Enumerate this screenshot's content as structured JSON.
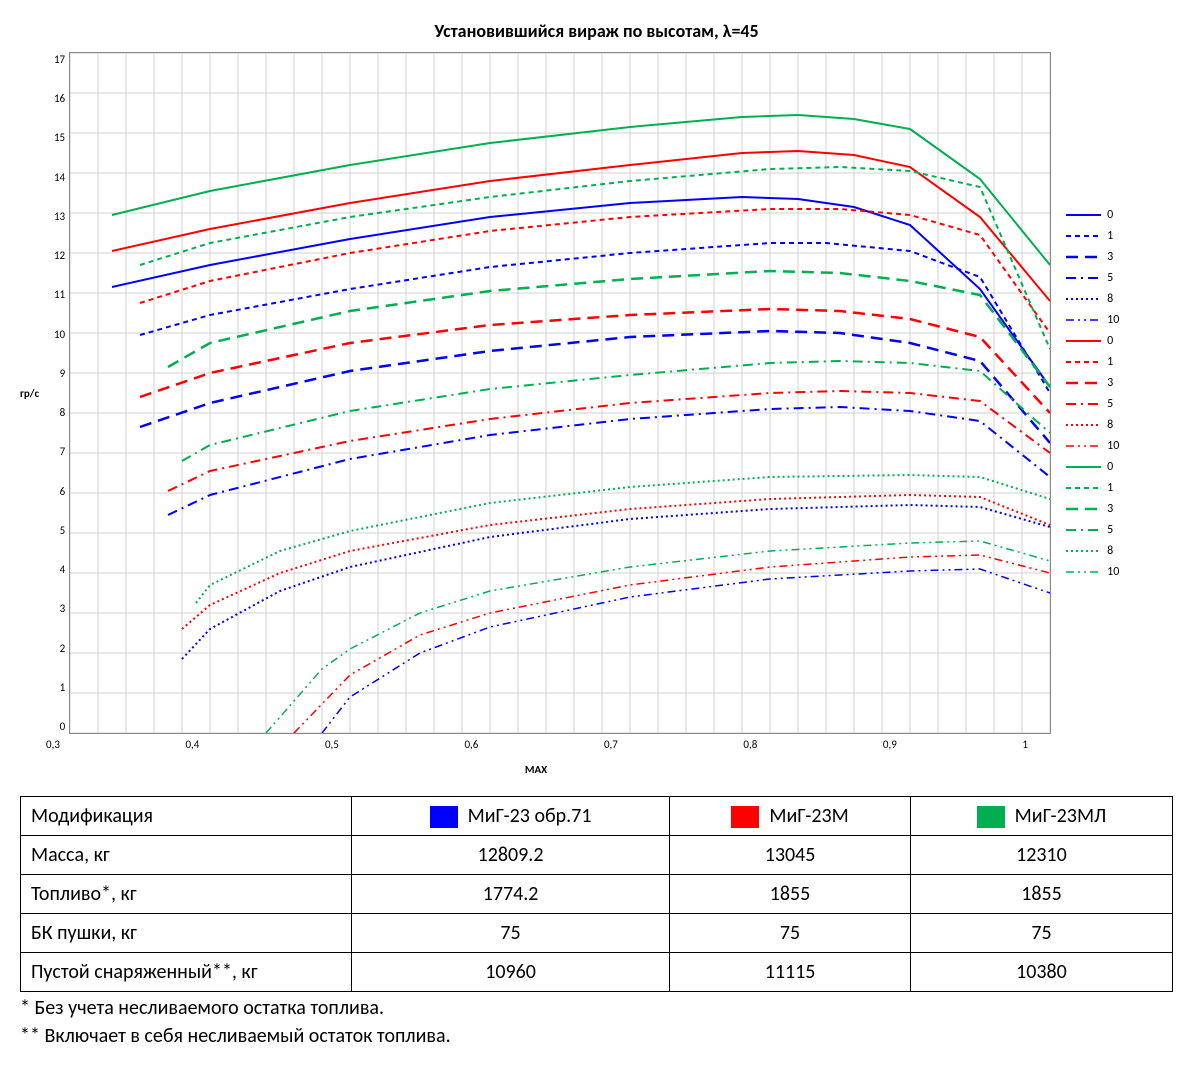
{
  "chart": {
    "title": "Установившийся вираж по высотам, λ=45",
    "xlabel": "МАХ",
    "ylabel": "гр/с",
    "xlim": [
      0.3,
      1.0
    ],
    "ylim": [
      0,
      17
    ],
    "xtick_step": 0.1,
    "xtick_minor": 0.02,
    "ytick_step": 1,
    "grid_color": "#d0d0d0",
    "background": "#ffffff",
    "colors": {
      "blue": "#0000ff",
      "red": "#ff0000",
      "green": "#00b050"
    },
    "series": [
      {
        "label": "0",
        "color": "#0000ff",
        "dash": "",
        "width": 2,
        "x": [
          0.33,
          0.4,
          0.5,
          0.6,
          0.7,
          0.78,
          0.82,
          0.86,
          0.9,
          0.95,
          1.0
        ],
        "y": [
          11.15,
          11.7,
          12.35,
          12.9,
          13.25,
          13.4,
          13.35,
          13.15,
          12.7,
          11.1,
          8.65
        ]
      },
      {
        "label": "1",
        "color": "#0000ff",
        "dash": "5,4",
        "width": 2,
        "x": [
          0.35,
          0.4,
          0.5,
          0.6,
          0.7,
          0.8,
          0.84,
          0.9,
          0.95,
          1.0
        ],
        "y": [
          9.95,
          10.45,
          11.1,
          11.65,
          12.0,
          12.25,
          12.25,
          12.05,
          11.4,
          8.5
        ]
      },
      {
        "label": "3",
        "color": "#0000ff",
        "dash": "12,7",
        "width": 2.5,
        "x": [
          0.35,
          0.4,
          0.5,
          0.6,
          0.7,
          0.8,
          0.85,
          0.9,
          0.95,
          1.0
        ],
        "y": [
          7.65,
          8.25,
          9.05,
          9.55,
          9.9,
          10.05,
          10.0,
          9.75,
          9.3,
          7.25
        ]
      },
      {
        "label": "5",
        "color": "#0000ff",
        "dash": "10,5,2,5",
        "width": 2,
        "x": [
          0.37,
          0.4,
          0.5,
          0.6,
          0.7,
          0.8,
          0.85,
          0.9,
          0.95,
          1.0
        ],
        "y": [
          5.45,
          5.95,
          6.85,
          7.45,
          7.85,
          8.1,
          8.15,
          8.05,
          7.8,
          6.4
        ]
      },
      {
        "label": "8",
        "color": "#0000ff",
        "dash": "2,3",
        "width": 2,
        "x": [
          0.38,
          0.4,
          0.45,
          0.5,
          0.6,
          0.7,
          0.8,
          0.9,
          0.95,
          1.0
        ],
        "y": [
          1.85,
          2.6,
          3.55,
          4.15,
          4.9,
          5.35,
          5.6,
          5.7,
          5.65,
          5.15
        ]
      },
      {
        "label": "10",
        "color": "#0000ff",
        "dash": "8,4,2,4,2,4",
        "width": 1.5,
        "x": [
          0.48,
          0.5,
          0.55,
          0.6,
          0.7,
          0.8,
          0.9,
          0.95,
          1.0
        ],
        "y": [
          0.0,
          0.9,
          2.0,
          2.65,
          3.4,
          3.85,
          4.05,
          4.1,
          3.5
        ]
      },
      {
        "label": "0",
        "color": "#ff0000",
        "dash": "",
        "width": 2,
        "x": [
          0.33,
          0.4,
          0.5,
          0.6,
          0.7,
          0.78,
          0.82,
          0.86,
          0.9,
          0.95,
          1.0
        ],
        "y": [
          12.05,
          12.6,
          13.25,
          13.8,
          14.2,
          14.5,
          14.55,
          14.45,
          14.15,
          12.9,
          10.8
        ]
      },
      {
        "label": "1",
        "color": "#ff0000",
        "dash": "5,4",
        "width": 2,
        "x": [
          0.35,
          0.4,
          0.5,
          0.6,
          0.7,
          0.8,
          0.85,
          0.9,
          0.95,
          1.0
        ],
        "y": [
          10.75,
          11.3,
          12.0,
          12.55,
          12.9,
          13.1,
          13.1,
          12.95,
          12.45,
          10.0
        ]
      },
      {
        "label": "3",
        "color": "#ff0000",
        "dash": "12,7",
        "width": 2.5,
        "x": [
          0.35,
          0.4,
          0.5,
          0.6,
          0.7,
          0.8,
          0.85,
          0.9,
          0.95,
          1.0
        ],
        "y": [
          8.4,
          9.0,
          9.75,
          10.2,
          10.45,
          10.6,
          10.55,
          10.35,
          9.9,
          8.0
        ]
      },
      {
        "label": "5",
        "color": "#ff0000",
        "dash": "10,5,2,5",
        "width": 2,
        "x": [
          0.37,
          0.4,
          0.5,
          0.6,
          0.7,
          0.8,
          0.85,
          0.9,
          0.95,
          1.0
        ],
        "y": [
          6.05,
          6.55,
          7.3,
          7.85,
          8.25,
          8.5,
          8.55,
          8.5,
          8.3,
          7.0
        ]
      },
      {
        "label": "8",
        "color": "#ff0000",
        "dash": "2,3",
        "width": 2,
        "x": [
          0.38,
          0.4,
          0.45,
          0.5,
          0.6,
          0.7,
          0.8,
          0.9,
          0.95,
          1.0
        ],
        "y": [
          2.6,
          3.2,
          4.0,
          4.55,
          5.2,
          5.6,
          5.85,
          5.95,
          5.9,
          5.2
        ]
      },
      {
        "label": "10",
        "color": "#ff0000",
        "dash": "8,4,2,4,2,4",
        "width": 1.5,
        "x": [
          0.46,
          0.5,
          0.55,
          0.6,
          0.7,
          0.8,
          0.9,
          0.95,
          1.0
        ],
        "y": [
          0.0,
          1.45,
          2.45,
          3.0,
          3.7,
          4.15,
          4.4,
          4.45,
          4.0
        ]
      },
      {
        "label": "0",
        "color": "#00b050",
        "dash": "",
        "width": 2,
        "x": [
          0.33,
          0.4,
          0.5,
          0.6,
          0.7,
          0.78,
          0.82,
          0.86,
          0.9,
          0.95,
          1.0
        ],
        "y": [
          12.95,
          13.55,
          14.2,
          14.75,
          15.15,
          15.4,
          15.45,
          15.35,
          15.1,
          13.85,
          11.7
        ]
      },
      {
        "label": "1",
        "color": "#00b050",
        "dash": "5,4",
        "width": 2,
        "x": [
          0.35,
          0.4,
          0.5,
          0.6,
          0.7,
          0.8,
          0.85,
          0.9,
          0.95,
          1.0
        ],
        "y": [
          11.7,
          12.25,
          12.9,
          13.4,
          13.8,
          14.1,
          14.15,
          14.05,
          13.65,
          9.6
        ]
      },
      {
        "label": "3",
        "color": "#00b050",
        "dash": "12,7",
        "width": 2.5,
        "x": [
          0.37,
          0.4,
          0.5,
          0.6,
          0.7,
          0.8,
          0.85,
          0.9,
          0.95,
          1.0
        ],
        "y": [
          9.15,
          9.75,
          10.55,
          11.05,
          11.35,
          11.55,
          11.5,
          11.3,
          10.95,
          8.65
        ]
      },
      {
        "label": "5",
        "color": "#00b050",
        "dash": "10,5,2,5",
        "width": 2,
        "x": [
          0.38,
          0.4,
          0.5,
          0.6,
          0.7,
          0.8,
          0.85,
          0.9,
          0.95,
          1.0
        ],
        "y": [
          6.8,
          7.2,
          8.05,
          8.6,
          8.95,
          9.25,
          9.3,
          9.25,
          9.05,
          7.5
        ]
      },
      {
        "label": "8",
        "color": "#00b050",
        "dash": "2,3",
        "width": 2,
        "x": [
          0.39,
          0.4,
          0.45,
          0.5,
          0.6,
          0.7,
          0.8,
          0.9,
          0.95,
          1.0
        ],
        "y": [
          3.25,
          3.7,
          4.55,
          5.05,
          5.75,
          6.15,
          6.4,
          6.45,
          6.4,
          5.85
        ]
      },
      {
        "label": "10",
        "color": "#00b050",
        "dash": "8,4,2,4,2,4",
        "width": 1.5,
        "x": [
          0.44,
          0.48,
          0.5,
          0.55,
          0.6,
          0.7,
          0.8,
          0.9,
          0.95,
          1.0
        ],
        "y": [
          0.0,
          1.6,
          2.1,
          3.0,
          3.55,
          4.15,
          4.55,
          4.75,
          4.8,
          4.3
        ]
      }
    ],
    "xticks": [
      "0,3",
      "0,4",
      "0,5",
      "0,6",
      "0,7",
      "0,8",
      "0,9",
      "1"
    ]
  },
  "table": {
    "rows": [
      {
        "label": "Модификация",
        "v": [
          "МиГ-23 обр.71",
          "МиГ-23М",
          "МиГ-23МЛ"
        ],
        "swatch": true
      },
      {
        "label": "Масса, кг",
        "v": [
          "12809.2",
          "13045",
          "12310"
        ]
      },
      {
        "label": "Топливо*, кг",
        "v": [
          "1774.2",
          "1855",
          "1855"
        ]
      },
      {
        "label": "БК пушки, кг",
        "v": [
          "75",
          "75",
          "75"
        ]
      },
      {
        "label": "Пустой снаряженный**, кг",
        "v": [
          "10960",
          "11115",
          "10380"
        ]
      }
    ],
    "swatch_colors": [
      "#0000ff",
      "#ff0000",
      "#00b050"
    ]
  },
  "footnotes": [
    "* Без учета несливаемого остатка топлива.",
    "** Включает в себя несливаемый остаток топлива."
  ]
}
